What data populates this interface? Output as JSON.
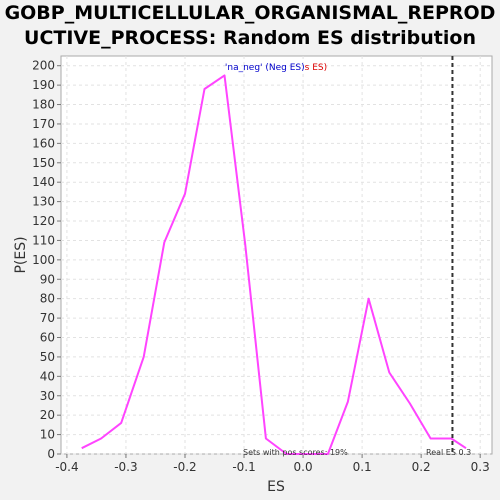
{
  "chart_data": {
    "type": "line",
    "title_line1": "GOBP_MULTICELLULAR_ORGANISMAL_REPROD",
    "title_line2": "UCTIVE_PROCESS: Random ES distribution",
    "xlabel": "ES",
    "ylabel": "P(ES)",
    "xlim": [
      -0.41,
      0.32
    ],
    "ylim": [
      0,
      205
    ],
    "xticks": [
      -0.4,
      -0.3,
      -0.2,
      -0.1,
      0.0,
      0.1,
      0.2,
      0.3
    ],
    "xtick_labels": [
      "-0.4",
      "-0.3",
      "-0.2",
      "-0.1",
      "0.0",
      "0.1",
      "0.2",
      "0.3"
    ],
    "yticks": [
      0,
      10,
      20,
      30,
      40,
      50,
      60,
      70,
      80,
      90,
      100,
      110,
      120,
      130,
      140,
      150,
      160,
      170,
      180,
      190,
      200
    ],
    "grid": true,
    "series": [
      {
        "color": "#ff44ff",
        "x": [
          -0.375,
          -0.342,
          -0.308,
          -0.27,
          -0.235,
          -0.2,
          -0.167,
          -0.133,
          -0.098,
          -0.063,
          -0.028,
          0.007,
          0.042,
          0.076,
          0.111,
          0.146,
          0.181,
          0.216,
          0.251,
          0.276
        ],
        "y": [
          3,
          8,
          16,
          50,
          109,
          134,
          188,
          195,
          108,
          8,
          0,
          0,
          0,
          27,
          80,
          42,
          26,
          8,
          8,
          3
        ]
      }
    ],
    "real_es": 0.253,
    "real_es_color": "#333333",
    "legend": {
      "position": "top-center",
      "part1": "'na_neg' (Neg ES)",
      "part1_color": "#0000cc",
      "part2": "s ES)",
      "part2_color": "#dd0000"
    },
    "annotations": {
      "pos_scores": "Sets with pos scores: 19%",
      "real_es_label": "Real ES 0.3"
    }
  }
}
